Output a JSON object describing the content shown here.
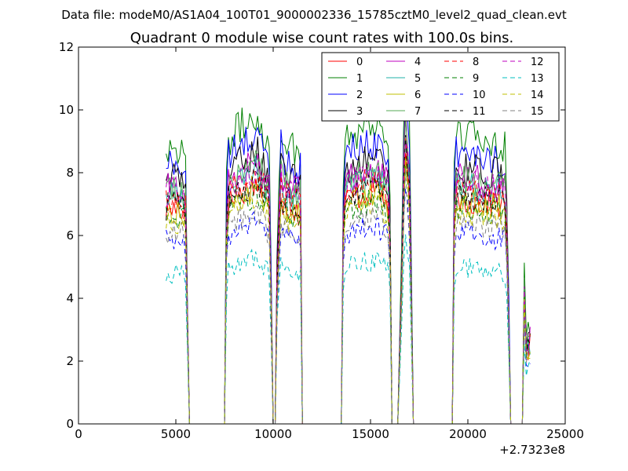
{
  "figure": {
    "suptitle": "Data file: modeM0/AS1A04_100T01_9000002336_15785cztM0_level2_quad_clean.evt",
    "title": "Quadrant 0 module wise count rates with 100.0s bins.",
    "x_offset_label": "+2.7323e8"
  },
  "chart_data": {
    "type": "line",
    "title": "Quadrant 0 module wise count rates with 100.0s bins.",
    "xlabel": "",
    "ylabel": "",
    "xlim": [
      0,
      25000
    ],
    "ylim": [
      0,
      12
    ],
    "x_offset": "+2.7323e8",
    "x_ticks": [
      "0",
      "5000",
      "10000",
      "15000",
      "20000",
      "25000"
    ],
    "y_ticks": [
      "0",
      "2",
      "4",
      "6",
      "8",
      "10",
      "12"
    ],
    "grid": false,
    "legend_position": "top-right",
    "x_break_points": [
      [
        4500,
        5300
      ],
      [
        5700,
        7500
      ],
      [
        7600,
        9800
      ],
      [
        10000,
        10200
      ],
      [
        10400,
        10900
      ],
      [
        11500,
        13500
      ],
      [
        13600,
        16000
      ],
      [
        16200,
        16600
      ],
      [
        16700,
        17000
      ],
      [
        17200,
        19200
      ],
      [
        19300,
        21900
      ],
      [
        22300,
        22800
      ],
      [
        22900,
        23200
      ]
    ],
    "profile": {
      "x": [
        4500,
        5300,
        5500,
        5600,
        5700,
        7500,
        7600,
        7700,
        9200,
        9800,
        9900,
        10000,
        10100,
        10200,
        10400,
        10500,
        10900,
        11400,
        11500,
        13500,
        13600,
        13700,
        15400,
        15900,
        16000,
        16100,
        16200,
        16400,
        16600,
        16700,
        16800,
        17000,
        17200,
        17300,
        19200,
        19300,
        19400,
        21500,
        21900,
        22000,
        22200,
        22300,
        22800,
        22900,
        23000,
        23200
      ],
      "y": [
        0.94,
        0.94,
        0.9,
        0.4,
        0.0,
        0.0,
        0.8,
        0.97,
        1.05,
        0.93,
        0.5,
        0.0,
        0.0,
        0.6,
        1.02,
        0.97,
        0.94,
        0.92,
        0.0,
        0.0,
        0.8,
        0.98,
        1.02,
        0.95,
        0.8,
        0.0,
        0.0,
        0.0,
        0.6,
        1.02,
        1.2,
        0.98,
        0.0,
        0.0,
        0.0,
        0.85,
        0.98,
        0.96,
        0.95,
        0.8,
        0.0,
        0.0,
        0.0,
        0.55,
        0.3,
        0.35
      ]
    },
    "series": [
      {
        "name": "0",
        "level": 7.3,
        "color": "#ff0000",
        "dash": "solid"
      },
      {
        "name": "1",
        "level": 9.4,
        "color": "#008000",
        "dash": "solid"
      },
      {
        "name": "2",
        "level": 8.8,
        "color": "#0000ff",
        "dash": "solid"
      },
      {
        "name": "3",
        "level": 8.3,
        "color": "#000000",
        "dash": "solid"
      },
      {
        "name": "4",
        "level": 8.0,
        "color": "#bf00bf",
        "dash": "solid"
      },
      {
        "name": "5",
        "level": 7.7,
        "color": "#20b2aa",
        "dash": "solid"
      },
      {
        "name": "6",
        "level": 7.2,
        "color": "#bfbf00",
        "dash": "solid"
      },
      {
        "name": "7",
        "level": 7.9,
        "color": "#55aa55",
        "dash": "solid"
      },
      {
        "name": "8",
        "level": 7.6,
        "color": "#ff0000",
        "dash": "dashed"
      },
      {
        "name": "9",
        "level": 7.0,
        "color": "#008000",
        "dash": "dashed"
      },
      {
        "name": "10",
        "level": 6.2,
        "color": "#0000ff",
        "dash": "dashed"
      },
      {
        "name": "11",
        "level": 7.4,
        "color": "#000000",
        "dash": "dashed"
      },
      {
        "name": "12",
        "level": 7.8,
        "color": "#bf00bf",
        "dash": "dashed"
      },
      {
        "name": "13",
        "level": 5.1,
        "color": "#00bfbf",
        "dash": "dashed"
      },
      {
        "name": "14",
        "level": 6.9,
        "color": "#bfbf00",
        "dash": "dashed"
      },
      {
        "name": "15",
        "level": 6.5,
        "color": "#808080",
        "dash": "dashed"
      }
    ]
  }
}
